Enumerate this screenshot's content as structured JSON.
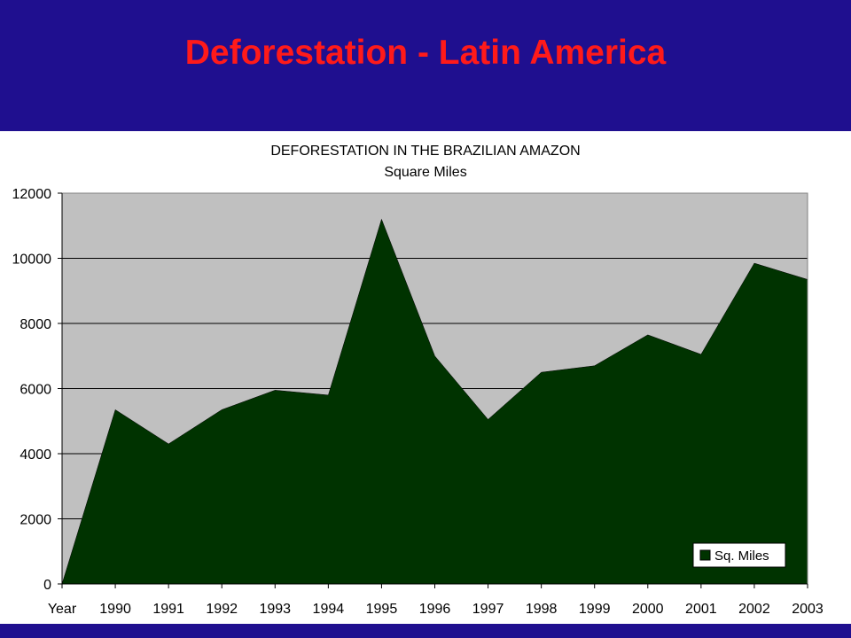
{
  "slide": {
    "title": "Deforestation - Latin America"
  },
  "colors": {
    "background": "#1f0f8f",
    "title": "#ff1a1a",
    "plot_area": "#c0c0c0",
    "area_fill": "#003300"
  },
  "chart_data": {
    "type": "area",
    "title": "DEFORESTATION IN THE BRAZILIAN AMAZON",
    "subtitle": "Square Miles",
    "categories": [
      "Year",
      "1990",
      "1991",
      "1992",
      "1993",
      "1994",
      "1995",
      "1996",
      "1997",
      "1998",
      "1999",
      "2000",
      "2001",
      "2002",
      "2003"
    ],
    "series": [
      {
        "name": "Sq. Miles",
        "values": [
          0,
          5350,
          4300,
          5350,
          5950,
          5800,
          11200,
          7000,
          5050,
          6500,
          6700,
          7650,
          7050,
          9850,
          9350
        ]
      }
    ],
    "ylim": [
      0,
      12000
    ],
    "yticks": [
      0,
      2000,
      4000,
      6000,
      8000,
      10000,
      12000
    ],
    "grid": true,
    "legend": "bottom-right"
  }
}
